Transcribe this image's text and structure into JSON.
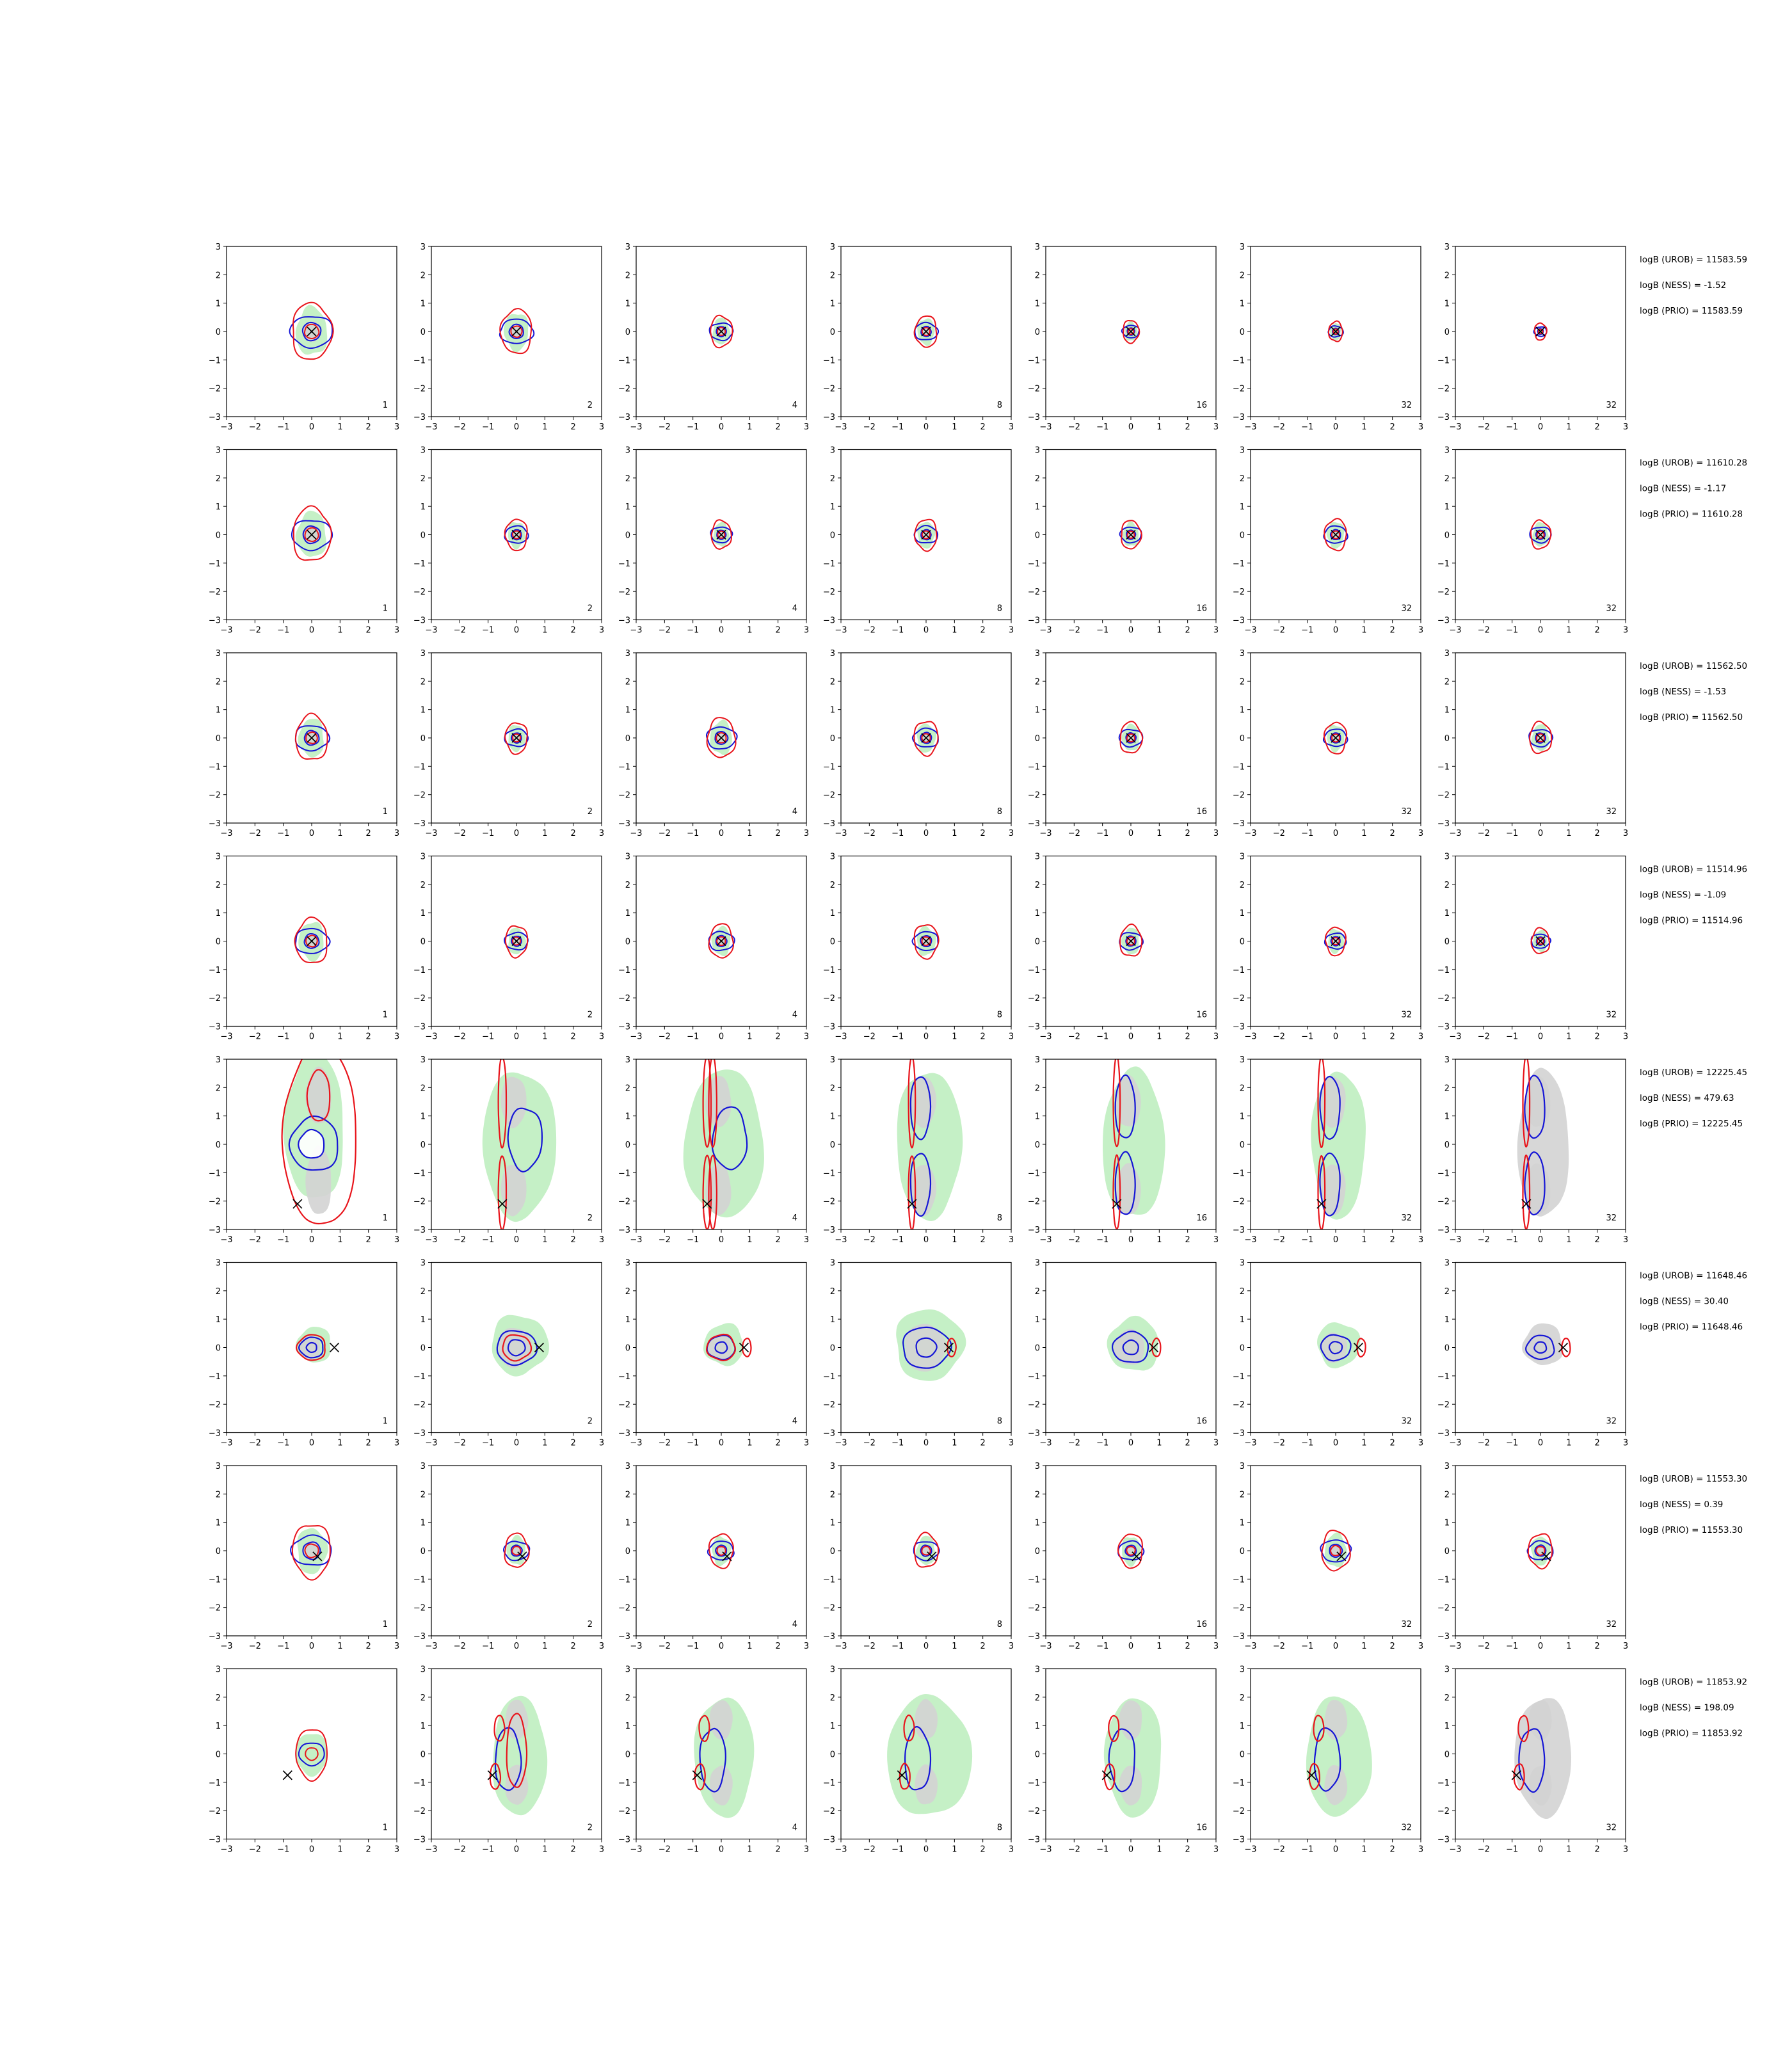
{
  "figure": {
    "background": "#ffffff"
  },
  "colors": {
    "fill_green": "#bfeec0",
    "fill_grey": "#d3d3d3",
    "contour_red": "#e8141b",
    "contour_blue": "#1515d6",
    "marker": "#000000"
  },
  "chart_data": {
    "type": "contour",
    "grid": {
      "rows": 8,
      "cols": 7
    },
    "axes": {
      "xlim": [
        -3,
        3
      ],
      "ylim": [
        -3,
        3
      ],
      "xticks": [
        -3,
        -2,
        -1,
        0,
        1,
        2,
        3
      ],
      "yticks": [
        -3,
        -2,
        -1,
        0,
        1,
        2,
        3
      ],
      "tick_labels": [
        "−3",
        "−2",
        "−1",
        "0",
        "1",
        "2",
        "3"
      ],
      "grid": false
    },
    "panel_numbers": [
      "1",
      "2",
      "4",
      "8",
      "16",
      "32",
      "32"
    ],
    "rows": [
      {
        "marker": [
          0,
          0
        ],
        "mode": "small",
        "scale": [
          1.0,
          0.78,
          0.55,
          0.55,
          0.4,
          0.35,
          0.3
        ],
        "labels": [
          "logB (UROB) = 11583.59",
          "logB (NESS) = -1.52",
          "logB (PRIO) = 11583.59"
        ]
      },
      {
        "marker": [
          0,
          0
        ],
        "mode": "small",
        "scale": [
          0.95,
          0.55,
          0.5,
          0.55,
          0.5,
          0.55,
          0.5
        ],
        "labels": [
          "logB (UROB) = 11610.28",
          "logB (NESS) = -1.17",
          "logB (PRIO) = 11610.28"
        ]
      },
      {
        "marker": [
          0,
          0
        ],
        "mode": "small",
        "scale": [
          0.8,
          0.55,
          0.7,
          0.6,
          0.55,
          0.55,
          0.55
        ],
        "labels": [
          "logB (UROB) = 11562.50",
          "logB (NESS) = -1.53",
          "logB (PRIO) = 11562.50"
        ]
      },
      {
        "marker": [
          0,
          0
        ],
        "mode": "small",
        "scale": [
          0.8,
          0.55,
          0.6,
          0.6,
          0.55,
          0.5,
          0.45
        ],
        "labels": [
          "logB (UROB) = 11514.96",
          "logB (NESS) = -1.09",
          "logB (PRIO) = 11514.96"
        ]
      },
      {
        "marker": [
          -0.5,
          -2.1
        ],
        "mode": "vertical",
        "labels": [
          "logB (UROB) = 12225.45",
          "logB (NESS) = 479.63",
          "logB (PRIO) = 12225.45"
        ]
      },
      {
        "marker": [
          0.8,
          0
        ],
        "mode": "right",
        "labels": [
          "logB (UROB) = 11648.46",
          "logB (NESS) = 30.40",
          "logB (PRIO) = 11648.46"
        ]
      },
      {
        "marker": [
          0.2,
          -0.2
        ],
        "mode": "small",
        "scale": [
          0.95,
          0.6,
          0.6,
          0.6,
          0.6,
          0.7,
          0.6
        ],
        "labels": [
          "logB (UROB) = 11553.30",
          "logB (NESS) = 0.39",
          "logB (PRIO) = 11553.30"
        ]
      },
      {
        "marker": [
          -0.85,
          -0.75
        ],
        "mode": "lowerleft",
        "labels": [
          "logB (UROB) = 11853.92",
          "logB (NESS) = 198.09",
          "logB (PRIO) = 11853.92"
        ]
      }
    ]
  }
}
